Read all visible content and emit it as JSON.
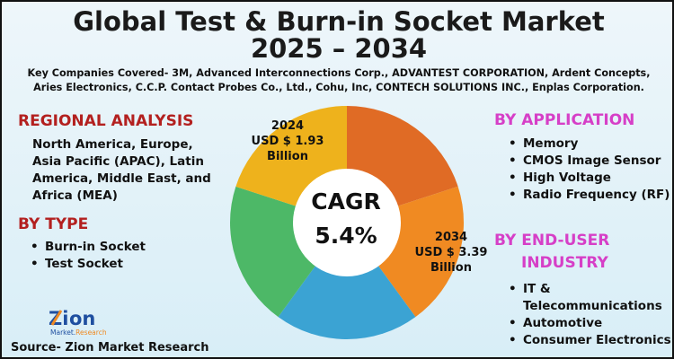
{
  "title_line1": "Global Test & Burn-in Socket Market",
  "title_line2": "2025 – 2034",
  "companies": "Key Companies Covered- 3M, Advanced Interconnections Corp., ADVANTEST CORPORATION, Ardent Concepts, Aries Electronics, C.C.P. Contact Probes Co., Ltd., Cohu, Inc, CONTECH SOLUTIONS INC., Enplas Corporation.",
  "regional": {
    "heading": "REGIONAL ANALYSIS",
    "text": "North America, Europe, Asia Pacific (APAC), Latin America, Middle East, and Africa (MEA)"
  },
  "by_type": {
    "heading": "BY TYPE",
    "items": [
      "Burn-in Socket",
      "Test Socket"
    ]
  },
  "by_application": {
    "heading": "BY APPLICATION",
    "items": [
      "Memory",
      "CMOS Image Sensor",
      "High Voltage",
      "Radio Frequency (RF)"
    ]
  },
  "by_end_user": {
    "heading_line1": "BY END-USER",
    "heading_line2": "INDUSTRY",
    "items": [
      "IT & Telecommunications",
      "Automotive",
      "Consumer Electronics"
    ]
  },
  "start": {
    "year": "2024",
    "value": "USD $ 1.93",
    "unit": "Billion"
  },
  "end": {
    "year": "2034",
    "value": "USD $ 3.39",
    "unit": "Billion"
  },
  "cagr": {
    "label": "CAGR",
    "value": "5.4%"
  },
  "donut_colors": [
    "#e06b25",
    "#f08a22",
    "#3ba3d3",
    "#4db867",
    "#eeb21c"
  ],
  "logo": {
    "name": "Zion",
    "sub": "Market.Research"
  },
  "source": "Source- Zion Market Research"
}
